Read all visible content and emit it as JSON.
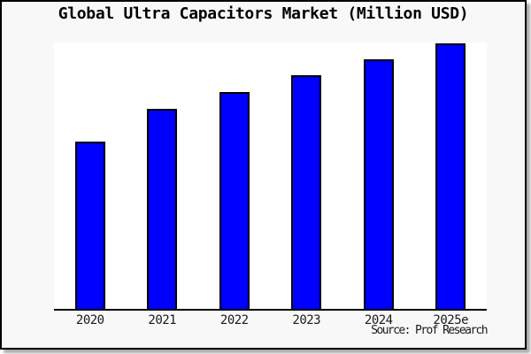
{
  "window": {
    "title": "Global Ultra Capacitors Market (Million USD)"
  },
  "chart_data": {
    "type": "bar",
    "title": "Global Ultra Capacitors Market (Million USD)",
    "categories": [
      "2020",
      "2021",
      "2022",
      "2023",
      "2024",
      "2025e"
    ],
    "values": [
      62.8,
      75.1,
      81.5,
      87.7,
      93.6,
      99.8
    ],
    "value_scale": "relative-percent-of-max (y-axis unlabeled in chart)",
    "xlabel": "",
    "ylabel": "",
    "ylim": [
      0,
      100
    ],
    "grid": false,
    "legend": false,
    "source": "Source: Prof Research"
  },
  "colors": {
    "bar_fill": "#0000fe",
    "bar_border": "#000000",
    "plot_background": "#ffffff",
    "page_background": "#f8f8f8",
    "frame_border": "#000000",
    "text": "#1a1a1a"
  }
}
